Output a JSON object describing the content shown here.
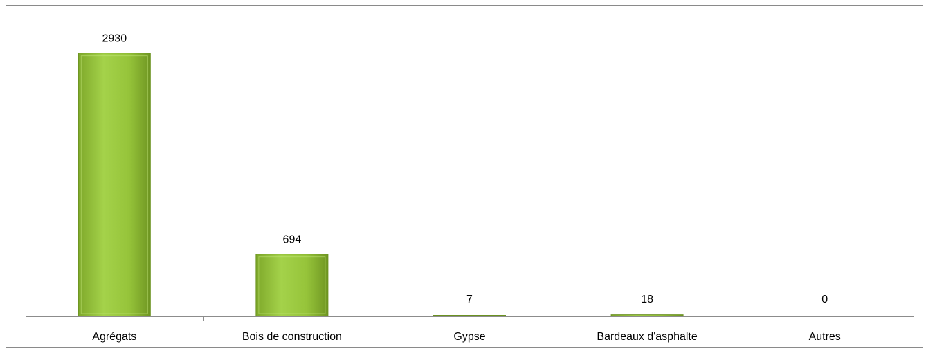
{
  "chart_data": {
    "type": "bar",
    "categories": [
      "Agrégats",
      "Bois de construction",
      "Gypse",
      "Bardeaux d'asphalte",
      "Autres"
    ],
    "values": [
      2930,
      694,
      7,
      18,
      0
    ],
    "data_labels": [
      "2930",
      "694",
      "7",
      "18",
      "0"
    ],
    "title": "",
    "xlabel": "",
    "ylabel": "",
    "ylim": [
      0,
      3250
    ],
    "grid": false,
    "legend": "none",
    "colors": {
      "bar_light": "#b5dc5a",
      "bar_mid": "#8fbf2e",
      "bar_dark": "#6b9220",
      "axis": "#8c8c8c",
      "frame": "#8a8a8a"
    }
  }
}
